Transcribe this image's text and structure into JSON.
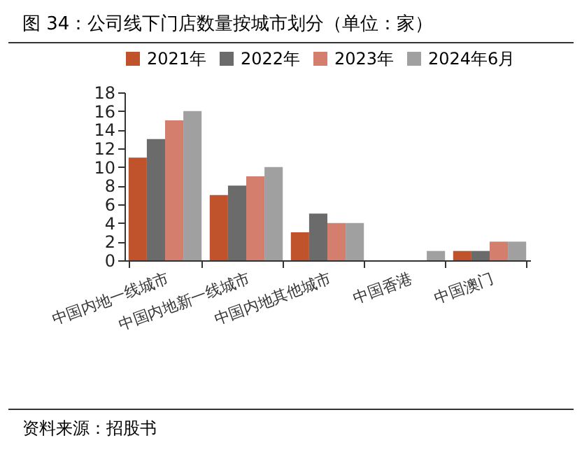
{
  "chart_data": {
    "type": "bar",
    "title": "图 34：公司线下门店数量按城市划分（单位：家）",
    "categories": [
      "中国内地一线城市",
      "中国内地新一线城市",
      "中国内地其他城市",
      "中国香港",
      "中国澳门"
    ],
    "series": [
      {
        "name": "2021年",
        "color": "#c0532b",
        "values": [
          11,
          7,
          3,
          0,
          1
        ]
      },
      {
        "name": "2022年",
        "color": "#6b6b6b",
        "values": [
          13,
          8,
          5,
          0,
          1
        ]
      },
      {
        "name": "2023年",
        "color": "#d47f6e",
        "values": [
          15,
          9,
          4,
          0,
          2
        ]
      },
      {
        "name": "2024年6月",
        "color": "#a0a0a0",
        "values": [
          16,
          10,
          4,
          1,
          2
        ]
      }
    ],
    "ylim": [
      0,
      18
    ],
    "yticks": [
      0,
      2,
      4,
      6,
      8,
      10,
      12,
      14,
      16,
      18
    ],
    "grid": false,
    "legend": "top",
    "annotations": [
      "资料来源：招股书"
    ]
  }
}
